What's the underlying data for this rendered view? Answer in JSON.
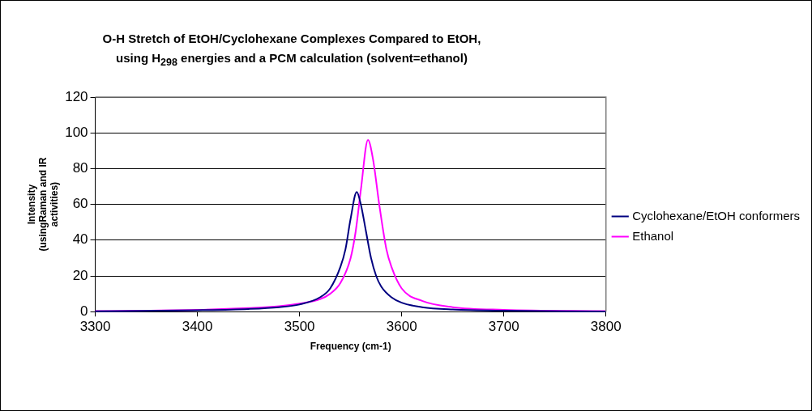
{
  "chart_data": {
    "type": "line",
    "title": "O-H Stretch of EtOH/Cyclohexane Complexes Compared to EtOH,\nusing H$_{298}$ energies and a PCM calculation (solvent=ethanol)",
    "xlabel": "Frequency (cm-1)",
    "ylabel": "Intensity\n(usingRaman and IR\nactivities)",
    "series": [
      {
        "name": "Cyclohexane/EtOH conformers",
        "color": "#000080",
        "x": [
          3300,
          3400,
          3450,
          3480,
          3500,
          3520,
          3530,
          3540,
          3545,
          3550,
          3556,
          3560,
          3565,
          3570,
          3575,
          3580,
          3590,
          3600,
          3620,
          3650,
          3700,
          3800
        ],
        "values": [
          0.2,
          0.8,
          1.5,
          2.5,
          4,
          8,
          13,
          25,
          35,
          52,
          67,
          60,
          45,
          30,
          20,
          14,
          8,
          5,
          2.5,
          1.2,
          0.5,
          0.1
        ]
      },
      {
        "name": "Ethanol",
        "color": "#ff00ff",
        "x": [
          3300,
          3400,
          3450,
          3480,
          3500,
          3520,
          3530,
          3540,
          3550,
          3555,
          3560,
          3567,
          3572,
          3578,
          3585,
          3590,
          3600,
          3620,
          3650,
          3700,
          3800
        ],
        "values": [
          0.3,
          1,
          2,
          3,
          4.5,
          7,
          10,
          16,
          30,
          45,
          68,
          96,
          85,
          60,
          35,
          25,
          13,
          6,
          2.5,
          1,
          0.3
        ]
      }
    ],
    "xlim": [
      3300,
      3800
    ],
    "xticks": [
      3300,
      3400,
      3500,
      3600,
      3700,
      3800
    ],
    "ylim": [
      0,
      120
    ],
    "yticks": [
      0,
      20,
      40,
      60,
      80,
      100,
      120
    ],
    "grid": "y",
    "legend": "right",
    "marker": "none",
    "line_style": "solid"
  }
}
